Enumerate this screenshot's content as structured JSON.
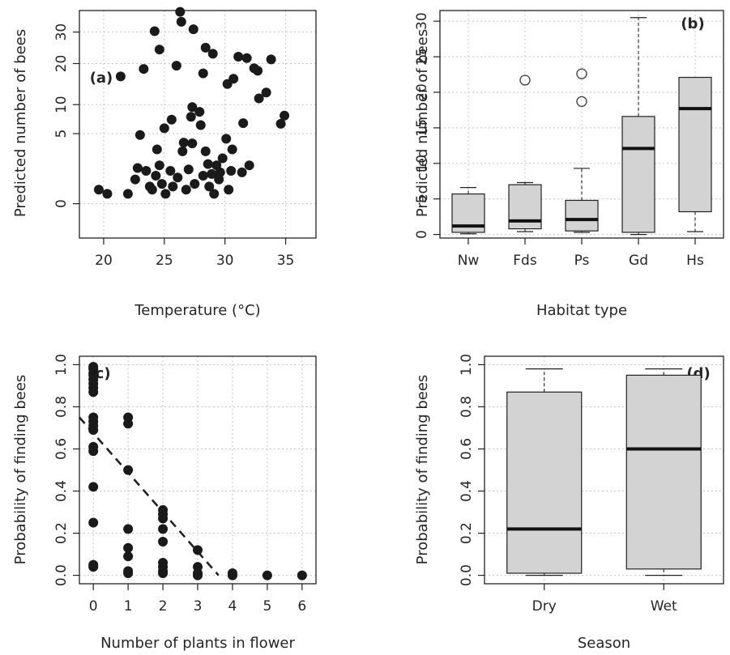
{
  "chart_data": [
    {
      "panel_label": "(a)",
      "type": "scatter",
      "xlabel": "Temperature (°C)",
      "ylabel": "Predicted number of bees",
      "xlim": [
        18,
        37.5
      ],
      "ylim": [
        -1.2,
        38
      ],
      "scale_y": "sqrt",
      "xticks": [
        20,
        25,
        30,
        35
      ],
      "yticks": [
        0,
        5,
        10,
        20,
        30
      ],
      "grid": true,
      "points": [
        {
          "x": 19.6,
          "y": 0.2
        },
        {
          "x": 20.3,
          "y": 0.1
        },
        {
          "x": 21.4,
          "y": 16.5
        },
        {
          "x": 22.0,
          "y": 0.1
        },
        {
          "x": 22.6,
          "y": 0.6
        },
        {
          "x": 22.8,
          "y": 1.3
        },
        {
          "x": 23.0,
          "y": 4.8
        },
        {
          "x": 23.3,
          "y": 18.5
        },
        {
          "x": 23.5,
          "y": 1.1
        },
        {
          "x": 23.8,
          "y": 0.3
        },
        {
          "x": 24.0,
          "y": 0.2
        },
        {
          "x": 24.2,
          "y": 30.3
        },
        {
          "x": 24.3,
          "y": 0.8
        },
        {
          "x": 24.4,
          "y": 3.0
        },
        {
          "x": 24.6,
          "y": 24.2
        },
        {
          "x": 24.6,
          "y": 1.5
        },
        {
          "x": 24.8,
          "y": 0.4
        },
        {
          "x": 25.0,
          "y": 5.8
        },
        {
          "x": 25.1,
          "y": 0.1
        },
        {
          "x": 25.5,
          "y": 1.1
        },
        {
          "x": 25.6,
          "y": 7.2
        },
        {
          "x": 25.7,
          "y": 0.3
        },
        {
          "x": 26.0,
          "y": 19.4
        },
        {
          "x": 26.1,
          "y": 0.7
        },
        {
          "x": 26.3,
          "y": 37.5
        },
        {
          "x": 26.4,
          "y": 33.7
        },
        {
          "x": 26.5,
          "y": 2.8
        },
        {
          "x": 26.6,
          "y": 3.8
        },
        {
          "x": 26.8,
          "y": 0.2
        },
        {
          "x": 27.0,
          "y": 1.2
        },
        {
          "x": 27.2,
          "y": 7.7
        },
        {
          "x": 27.3,
          "y": 9.5
        },
        {
          "x": 27.3,
          "y": 3.7
        },
        {
          "x": 27.4,
          "y": 31.0
        },
        {
          "x": 27.5,
          "y": 0.4
        },
        {
          "x": 27.9,
          "y": 8.6
        },
        {
          "x": 28.0,
          "y": 6.3
        },
        {
          "x": 28.2,
          "y": 17.3
        },
        {
          "x": 28.2,
          "y": 0.8
        },
        {
          "x": 28.4,
          "y": 24.8
        },
        {
          "x": 28.4,
          "y": 2.8
        },
        {
          "x": 28.6,
          "y": 1.6
        },
        {
          "x": 28.7,
          "y": 0.3
        },
        {
          "x": 28.9,
          "y": 0.9
        },
        {
          "x": 29.0,
          "y": 22.9
        },
        {
          "x": 29.1,
          "y": 0.1
        },
        {
          "x": 29.3,
          "y": 1.5
        },
        {
          "x": 29.5,
          "y": 0.6
        },
        {
          "x": 29.6,
          "y": 1.0
        },
        {
          "x": 29.8,
          "y": 2.1
        },
        {
          "x": 30.1,
          "y": 4.3
        },
        {
          "x": 30.2,
          "y": 14.6
        },
        {
          "x": 30.3,
          "y": 0.2
        },
        {
          "x": 30.5,
          "y": 1.1
        },
        {
          "x": 30.6,
          "y": 3.0
        },
        {
          "x": 30.7,
          "y": 15.9
        },
        {
          "x": 31.1,
          "y": 22.0
        },
        {
          "x": 31.4,
          "y": 1.0
        },
        {
          "x": 31.5,
          "y": 6.6
        },
        {
          "x": 31.8,
          "y": 21.6
        },
        {
          "x": 32.0,
          "y": 1.5
        },
        {
          "x": 32.4,
          "y": 18.7
        },
        {
          "x": 32.7,
          "y": 18.0
        },
        {
          "x": 32.8,
          "y": 11.3
        },
        {
          "x": 33.4,
          "y": 12.6
        },
        {
          "x": 33.8,
          "y": 21.2
        },
        {
          "x": 34.6,
          "y": 6.5
        },
        {
          "x": 34.9,
          "y": 7.9
        }
      ]
    },
    {
      "panel_label": "(b)",
      "type": "box",
      "xlabel": "Habitat type",
      "ylabel": "Predicted number of bees",
      "categories": [
        "Nw",
        "Fds",
        "Ps",
        "Gd",
        "Hs"
      ],
      "ylim": [
        -0.5,
        31.5
      ],
      "yticks": [
        0,
        5,
        10,
        15,
        20,
        25,
        30
      ],
      "grid": true,
      "boxes": [
        {
          "min": 0.1,
          "q1": 0.3,
          "median": 1.2,
          "q3": 5.7,
          "max": 6.6,
          "outliers": []
        },
        {
          "min": 0.4,
          "q1": 0.8,
          "median": 1.9,
          "q3": 7.0,
          "max": 7.3,
          "outliers": [
            21.7
          ]
        },
        {
          "min": 0.3,
          "q1": 0.5,
          "median": 2.1,
          "q3": 4.8,
          "max": 9.3,
          "outliers": [
            18.7,
            22.6
          ]
        },
        {
          "min": 0.0,
          "q1": 0.3,
          "median": 12.1,
          "q3": 16.6,
          "max": 30.5,
          "outliers": []
        },
        {
          "min": 0.4,
          "q1": 3.2,
          "median": 17.7,
          "q3": 22.1,
          "max": 22.1,
          "outliers": []
        }
      ]
    },
    {
      "panel_label": "(c)",
      "type": "scatter",
      "xlabel": "Number of plants in flower",
      "ylabel": "Probability of finding bees",
      "xlim": [
        -0.4,
        6.4
      ],
      "ylim": [
        -0.04,
        1.04
      ],
      "xticks": [
        0,
        1,
        2,
        3,
        4,
        5,
        6
      ],
      "yticks": [
        0.0,
        0.2,
        0.4,
        0.6,
        0.8,
        1.0
      ],
      "grid": true,
      "fit_line": {
        "x": [
          -0.4,
          3.6
        ],
        "y": [
          0.75,
          0.0
        ],
        "style": "dashed"
      },
      "points": [
        {
          "x": 0,
          "y": 0.99
        },
        {
          "x": 0,
          "y": 0.98
        },
        {
          "x": 0,
          "y": 0.96
        },
        {
          "x": 0,
          "y": 0.95
        },
        {
          "x": 0,
          "y": 0.93
        },
        {
          "x": 0,
          "y": 0.91
        },
        {
          "x": 0,
          "y": 0.89
        },
        {
          "x": 0,
          "y": 0.87
        },
        {
          "x": 0,
          "y": 0.75
        },
        {
          "x": 0,
          "y": 0.73
        },
        {
          "x": 0,
          "y": 0.71
        },
        {
          "x": 0,
          "y": 0.69
        },
        {
          "x": 0,
          "y": 0.61
        },
        {
          "x": 0,
          "y": 0.59
        },
        {
          "x": 0,
          "y": 0.42
        },
        {
          "x": 0,
          "y": 0.25
        },
        {
          "x": 0,
          "y": 0.05
        },
        {
          "x": 0,
          "y": 0.04
        },
        {
          "x": 1,
          "y": 0.75
        },
        {
          "x": 1,
          "y": 0.72
        },
        {
          "x": 1,
          "y": 0.5
        },
        {
          "x": 1,
          "y": 0.22
        },
        {
          "x": 1,
          "y": 0.13
        },
        {
          "x": 1,
          "y": 0.09
        },
        {
          "x": 1,
          "y": 0.02
        },
        {
          "x": 1,
          "y": 0.01
        },
        {
          "x": 2,
          "y": 0.31
        },
        {
          "x": 2,
          "y": 0.29
        },
        {
          "x": 2,
          "y": 0.27
        },
        {
          "x": 2,
          "y": 0.22
        },
        {
          "x": 2,
          "y": 0.16
        },
        {
          "x": 2,
          "y": 0.06
        },
        {
          "x": 2,
          "y": 0.04
        },
        {
          "x": 2,
          "y": 0.02
        },
        {
          "x": 2,
          "y": 0.01
        },
        {
          "x": 3,
          "y": 0.12
        },
        {
          "x": 3,
          "y": 0.04
        },
        {
          "x": 3,
          "y": 0.01
        },
        {
          "x": 3,
          "y": 0.0
        },
        {
          "x": 4,
          "y": 0.01
        },
        {
          "x": 4,
          "y": 0.0
        },
        {
          "x": 5,
          "y": 0.0
        },
        {
          "x": 6,
          "y": 0.0
        }
      ]
    },
    {
      "panel_label": "(d)",
      "type": "box",
      "xlabel": "Season",
      "ylabel": "Probability of finding bees",
      "categories": [
        "Dry",
        "Wet"
      ],
      "ylim": [
        -0.04,
        1.04
      ],
      "yticks": [
        0.0,
        0.2,
        0.4,
        0.6,
        0.8,
        1.0
      ],
      "grid": true,
      "boxes": [
        {
          "min": 0.0,
          "q1": 0.01,
          "median": 0.22,
          "q3": 0.87,
          "max": 0.98,
          "outliers": []
        },
        {
          "min": 0.0,
          "q1": 0.03,
          "median": 0.6,
          "q3": 0.95,
          "max": 0.98,
          "outliers": []
        }
      ]
    }
  ]
}
